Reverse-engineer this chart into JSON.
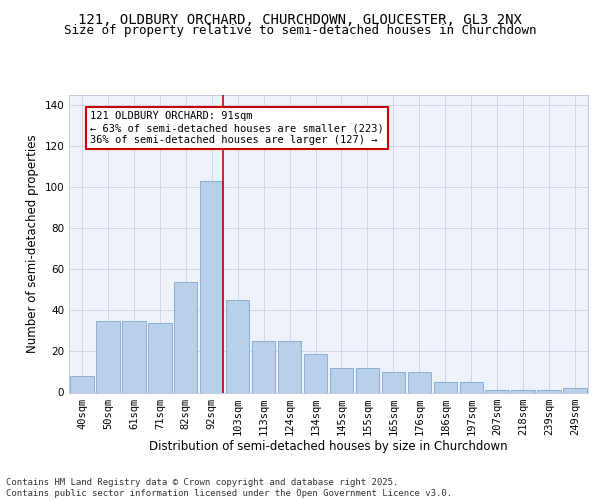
{
  "title_line1": "121, OLDBURY ORCHARD, CHURCHDOWN, GLOUCESTER, GL3 2NX",
  "title_line2": "Size of property relative to semi-detached houses in Churchdown",
  "xlabel": "Distribution of semi-detached houses by size in Churchdown",
  "ylabel": "Number of semi-detached properties",
  "categories": [
    "40sqm",
    "50sqm",
    "61sqm",
    "71sqm",
    "82sqm",
    "92sqm",
    "103sqm",
    "113sqm",
    "124sqm",
    "134sqm",
    "145sqm",
    "155sqm",
    "165sqm",
    "176sqm",
    "186sqm",
    "197sqm",
    "207sqm",
    "218sqm",
    "239sqm",
    "249sqm"
  ],
  "values": [
    8,
    35,
    35,
    34,
    54,
    103,
    45,
    25,
    25,
    19,
    12,
    12,
    10,
    10,
    5,
    5,
    1,
    1,
    1,
    2
  ],
  "bar_color": "#b8d0ea",
  "bar_edge_color": "#8aafd4",
  "highlight_bar_index": 5,
  "ylim": [
    0,
    145
  ],
  "yticks": [
    0,
    20,
    40,
    60,
    80,
    100,
    120,
    140
  ],
  "annotation_text": "121 OLDBURY ORCHARD: 91sqm\n← 63% of semi-detached houses are smaller (223)\n36% of semi-detached houses are larger (127) →",
  "annotation_box_color": "#ffffff",
  "annotation_box_edge": "#cc0000",
  "red_line_color": "#cc0000",
  "background_color": "#eef2fb",
  "footer_text": "Contains HM Land Registry data © Crown copyright and database right 2025.\nContains public sector information licensed under the Open Government Licence v3.0.",
  "title_fontsize": 10,
  "subtitle_fontsize": 9,
  "axis_label_fontsize": 8.5,
  "tick_fontsize": 7.5,
  "annotation_fontsize": 7.5,
  "footer_fontsize": 6.5
}
